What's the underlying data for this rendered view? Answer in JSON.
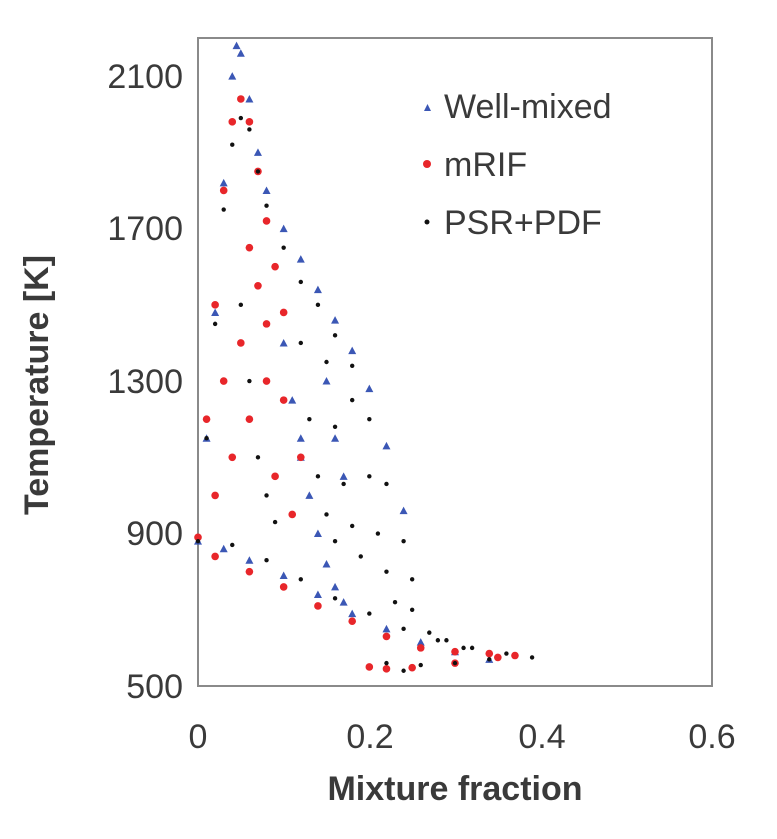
{
  "chart_data": {
    "type": "scatter",
    "xlabel": "Mixture fraction",
    "ylabel": "Temperature [K]",
    "xlim": [
      0,
      0.6
    ],
    "ylim": [
      500,
      2200
    ],
    "x_ticks": [
      "0",
      "0.2",
      "0.4",
      "0.6"
    ],
    "y_ticks": [
      "500",
      "900",
      "1300",
      "1700",
      "2100"
    ],
    "grid": false,
    "legend_position": "top-right",
    "series": [
      {
        "name": "Well-mixed",
        "marker": "triangle",
        "color": "#3b57b5",
        "points": [
          [
            0.0,
            880
          ],
          [
            0.01,
            1150
          ],
          [
            0.02,
            1480
          ],
          [
            0.03,
            1820
          ],
          [
            0.04,
            2100
          ],
          [
            0.045,
            2180
          ],
          [
            0.05,
            2160
          ],
          [
            0.06,
            2040
          ],
          [
            0.07,
            1900
          ],
          [
            0.08,
            1800
          ],
          [
            0.1,
            1700
          ],
          [
            0.12,
            1620
          ],
          [
            0.14,
            1540
          ],
          [
            0.16,
            1460
          ],
          [
            0.18,
            1380
          ],
          [
            0.2,
            1280
          ],
          [
            0.22,
            1130
          ],
          [
            0.24,
            960
          ],
          [
            0.03,
            860
          ],
          [
            0.06,
            830
          ],
          [
            0.1,
            790
          ],
          [
            0.14,
            740
          ],
          [
            0.18,
            690
          ],
          [
            0.22,
            650
          ],
          [
            0.26,
            615
          ],
          [
            0.3,
            590
          ],
          [
            0.34,
            570
          ],
          [
            0.12,
            1100
          ],
          [
            0.13,
            1000
          ],
          [
            0.14,
            900
          ],
          [
            0.15,
            820
          ],
          [
            0.16,
            760
          ],
          [
            0.17,
            720
          ],
          [
            0.1,
            1400
          ],
          [
            0.11,
            1250
          ],
          [
            0.12,
            1150
          ],
          [
            0.15,
            1300
          ],
          [
            0.16,
            1150
          ],
          [
            0.17,
            1050
          ]
        ]
      },
      {
        "name": "mRIF",
        "marker": "circle",
        "color": "#e8262a",
        "points": [
          [
            0.0,
            890
          ],
          [
            0.01,
            1200
          ],
          [
            0.02,
            1500
          ],
          [
            0.03,
            1800
          ],
          [
            0.04,
            1980
          ],
          [
            0.05,
            2040
          ],
          [
            0.06,
            1980
          ],
          [
            0.07,
            1850
          ],
          [
            0.08,
            1720
          ],
          [
            0.09,
            1600
          ],
          [
            0.1,
            1480
          ],
          [
            0.02,
            1000
          ],
          [
            0.04,
            1100
          ],
          [
            0.06,
            1200
          ],
          [
            0.08,
            1300
          ],
          [
            0.05,
            1400
          ],
          [
            0.07,
            1550
          ],
          [
            0.03,
            1300
          ],
          [
            0.06,
            1650
          ],
          [
            0.08,
            1450
          ],
          [
            0.1,
            1250
          ],
          [
            0.12,
            1100
          ],
          [
            0.09,
            1050
          ],
          [
            0.11,
            950
          ],
          [
            0.02,
            840
          ],
          [
            0.06,
            800
          ],
          [
            0.1,
            760
          ],
          [
            0.14,
            710
          ],
          [
            0.18,
            670
          ],
          [
            0.22,
            630
          ],
          [
            0.26,
            600
          ],
          [
            0.3,
            590
          ],
          [
            0.34,
            585
          ],
          [
            0.37,
            580
          ],
          [
            0.2,
            550
          ],
          [
            0.22,
            545
          ],
          [
            0.25,
            548
          ],
          [
            0.3,
            560
          ],
          [
            0.35,
            575
          ]
        ]
      },
      {
        "name": "PSR+PDF",
        "marker": "dot",
        "color": "#111111",
        "points": [
          [
            0.0,
            880
          ],
          [
            0.01,
            1150
          ],
          [
            0.02,
            1450
          ],
          [
            0.03,
            1750
          ],
          [
            0.04,
            1920
          ],
          [
            0.05,
            1990
          ],
          [
            0.06,
            1960
          ],
          [
            0.07,
            1850
          ],
          [
            0.08,
            1760
          ],
          [
            0.1,
            1650
          ],
          [
            0.12,
            1560
          ],
          [
            0.14,
            1500
          ],
          [
            0.16,
            1420
          ],
          [
            0.18,
            1340
          ],
          [
            0.2,
            1200
          ],
          [
            0.22,
            1030
          ],
          [
            0.24,
            880
          ],
          [
            0.25,
            780
          ],
          [
            0.05,
            1500
          ],
          [
            0.06,
            1300
          ],
          [
            0.07,
            1100
          ],
          [
            0.08,
            1000
          ],
          [
            0.09,
            930
          ],
          [
            0.12,
            1400
          ],
          [
            0.13,
            1200
          ],
          [
            0.14,
            1050
          ],
          [
            0.15,
            950
          ],
          [
            0.16,
            880
          ],
          [
            0.15,
            1350
          ],
          [
            0.16,
            1180
          ],
          [
            0.17,
            1030
          ],
          [
            0.18,
            920
          ],
          [
            0.19,
            840
          ],
          [
            0.18,
            1250
          ],
          [
            0.2,
            1050
          ],
          [
            0.21,
            900
          ],
          [
            0.22,
            800
          ],
          [
            0.23,
            720
          ],
          [
            0.04,
            870
          ],
          [
            0.08,
            830
          ],
          [
            0.12,
            780
          ],
          [
            0.16,
            730
          ],
          [
            0.2,
            690
          ],
          [
            0.24,
            650
          ],
          [
            0.28,
            620
          ],
          [
            0.32,
            600
          ],
          [
            0.36,
            585
          ],
          [
            0.39,
            575
          ],
          [
            0.25,
            700
          ],
          [
            0.27,
            640
          ],
          [
            0.29,
            620
          ],
          [
            0.31,
            600
          ],
          [
            0.22,
            560
          ],
          [
            0.26,
            555
          ],
          [
            0.3,
            560
          ],
          [
            0.34,
            570
          ],
          [
            0.24,
            540
          ]
        ]
      }
    ]
  }
}
